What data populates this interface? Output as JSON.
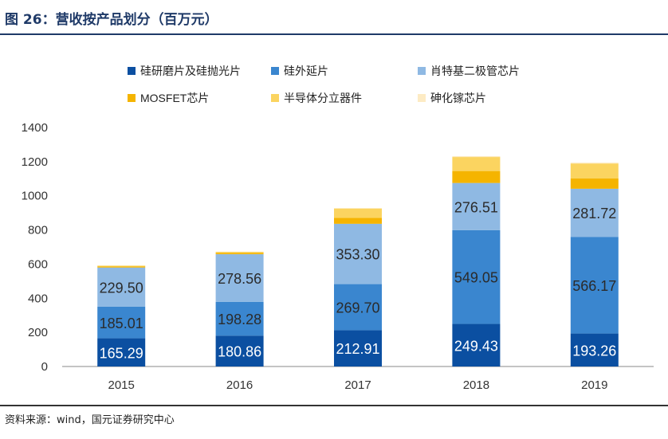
{
  "figure": {
    "title": "图 26：营收按产品划分（百万元）",
    "source": "资料来源：wind，国元证券研究中心"
  },
  "colors": {
    "title": "#1f3a68",
    "series": [
      "#0b4fa1",
      "#3a86cf",
      "#8fb9e3",
      "#f5b400",
      "#fbd460",
      "#fdebc4"
    ]
  },
  "chart_data": {
    "type": "bar",
    "stacked": true,
    "categories": [
      "2015",
      "2016",
      "2017",
      "2018",
      "2019"
    ],
    "ylim": [
      0,
      1400
    ],
    "yticks": [
      0,
      200,
      400,
      600,
      800,
      1000,
      1200,
      1400
    ],
    "grid": false,
    "legend_position": "top",
    "series": [
      {
        "name": "硅研磨片及硅抛光片",
        "values": [
          165.29,
          180.86,
          212.91,
          249.43,
          193.26
        ],
        "show_labels": true
      },
      {
        "name": "硅外延片",
        "values": [
          185.01,
          198.28,
          269.7,
          549.05,
          566.17
        ],
        "show_labels": true
      },
      {
        "name": "肖特基二极管芯片",
        "values": [
          229.5,
          278.56,
          353.3,
          276.51,
          281.72
        ],
        "show_labels": true
      },
      {
        "name": "MOSFET芯片",
        "values": [
          6,
          8,
          35,
          70,
          60
        ],
        "show_labels": false
      },
      {
        "name": "半导体分立器件",
        "values": [
          5,
          6,
          55,
          82,
          88
        ],
        "show_labels": false
      },
      {
        "name": "砷化镓芯片",
        "values": [
          0,
          0,
          0,
          5,
          5
        ],
        "show_labels": false
      }
    ]
  }
}
